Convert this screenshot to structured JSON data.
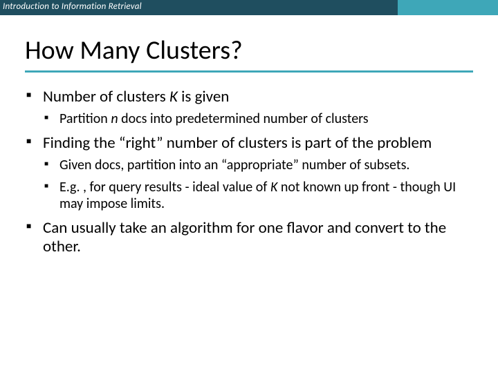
{
  "header": {
    "text": "Introduction to Information Retrieval"
  },
  "title": "How Many Clusters?",
  "colors": {
    "header_left_bg": "#1f4e5f",
    "header_right_bg": "#3ea7b8",
    "underline": "#3ea7b8",
    "text": "#000000",
    "background": "#ffffff"
  },
  "typography": {
    "title_fontsize": 38,
    "lvl1_fontsize": 23,
    "lvl2_fontsize": 20,
    "header_fontsize": 13,
    "font_family": "Calibri"
  },
  "bullets": [
    {
      "pre": "Number of clusters ",
      "ital": "K",
      "post": " is given",
      "children": [
        {
          "pre": "Partition ",
          "ital": "n",
          "post": " docs into predetermined number of clusters"
        }
      ]
    },
    {
      "pre": "Finding the “right” number of clusters is part of the problem",
      "ital": "",
      "post": "",
      "children": [
        {
          "pre": "Given docs, partition into an “appropriate” number of subsets.",
          "ital": "",
          "post": ""
        },
        {
          "pre": "E.g. , for query results - ideal value of ",
          "ital": "K",
          "post": " not known up front - though UI may impose limits."
        }
      ]
    },
    {
      "pre": "Can usually take an algorithm for one flavor and convert to the other.",
      "ital": "",
      "post": "",
      "children": []
    }
  ]
}
